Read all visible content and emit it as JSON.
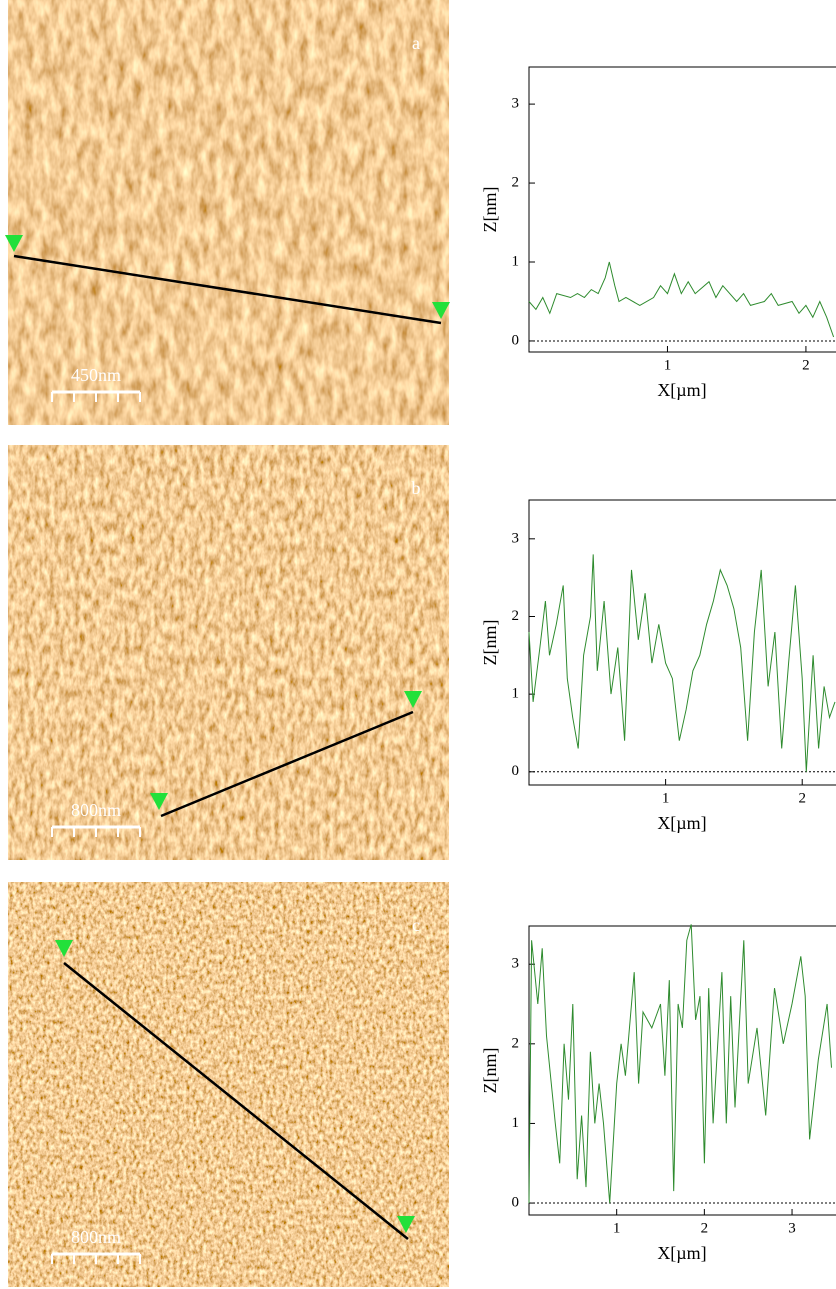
{
  "chart_data": [
    {
      "type": "line",
      "xlabel": "X[µm]",
      "ylabel": "Z[nm]",
      "color": "#2e8b2e",
      "xlim": [
        0,
        2.21
      ],
      "ylim": [
        -0.14,
        3.47
      ],
      "xticks": [
        1,
        2
      ],
      "yticks": [
        0,
        1,
        2,
        3
      ],
      "x": [
        0,
        0.05,
        0.1,
        0.15,
        0.2,
        0.3,
        0.35,
        0.4,
        0.45,
        0.5,
        0.55,
        0.58,
        0.62,
        0.65,
        0.7,
        0.8,
        0.9,
        0.95,
        1.0,
        1.05,
        1.1,
        1.15,
        1.2,
        1.3,
        1.35,
        1.4,
        1.5,
        1.55,
        1.6,
        1.7,
        1.75,
        1.8,
        1.9,
        1.95,
        2.0,
        2.05,
        2.1,
        2.15,
        2.2
      ],
      "values": [
        0.5,
        0.4,
        0.55,
        0.35,
        0.6,
        0.55,
        0.6,
        0.55,
        0.65,
        0.6,
        0.8,
        1.0,
        0.7,
        0.5,
        0.55,
        0.45,
        0.55,
        0.7,
        0.6,
        0.85,
        0.6,
        0.75,
        0.6,
        0.75,
        0.55,
        0.7,
        0.5,
        0.6,
        0.45,
        0.5,
        0.6,
        0.45,
        0.5,
        0.35,
        0.45,
        0.3,
        0.5,
        0.3,
        0.05
      ]
    },
    {
      "type": "line",
      "xlabel": "X[µm]",
      "ylabel": "Z[nm]",
      "color": "#2e8b2e",
      "xlim": [
        0,
        2.24
      ],
      "ylim": [
        -0.17,
        3.5
      ],
      "xticks": [
        1,
        2
      ],
      "yticks": [
        0,
        1,
        2,
        3
      ],
      "x": [
        0,
        0.03,
        0.08,
        0.12,
        0.15,
        0.2,
        0.25,
        0.28,
        0.32,
        0.36,
        0.4,
        0.45,
        0.47,
        0.5,
        0.55,
        0.6,
        0.65,
        0.7,
        0.75,
        0.8,
        0.85,
        0.9,
        0.95,
        1.0,
        1.05,
        1.1,
        1.15,
        1.2,
        1.25,
        1.3,
        1.35,
        1.4,
        1.45,
        1.5,
        1.55,
        1.6,
        1.65,
        1.7,
        1.75,
        1.8,
        1.85,
        1.9,
        1.95,
        2.0,
        2.03,
        2.08,
        2.12,
        2.16,
        2.2,
        2.24
      ],
      "values": [
        1.8,
        0.9,
        1.6,
        2.2,
        1.5,
        1.9,
        2.4,
        1.2,
        0.7,
        0.3,
        1.5,
        2.0,
        2.8,
        1.3,
        2.2,
        1.0,
        1.6,
        0.4,
        2.6,
        1.7,
        2.3,
        1.4,
        1.9,
        1.4,
        1.2,
        0.4,
        0.8,
        1.3,
        1.5,
        1.9,
        2.2,
        2.6,
        2.4,
        2.1,
        1.6,
        0.4,
        1.8,
        2.6,
        1.1,
        1.8,
        0.3,
        1.4,
        2.4,
        1.2,
        0.0,
        1.5,
        0.3,
        1.1,
        0.7,
        0.9
      ]
    },
    {
      "type": "line",
      "xlabel": "X[µm]",
      "ylabel": "Z[nm]",
      "color": "#2e8b2e",
      "xlim": [
        0,
        3.49
      ],
      "ylim": [
        -0.15,
        3.48
      ],
      "xticks": [
        1,
        2,
        3
      ],
      "yticks": [
        0,
        1,
        2,
        3
      ],
      "x": [
        0,
        0.03,
        0.1,
        0.15,
        0.2,
        0.3,
        0.35,
        0.4,
        0.45,
        0.5,
        0.55,
        0.6,
        0.65,
        0.7,
        0.75,
        0.8,
        0.85,
        0.92,
        1.0,
        1.05,
        1.1,
        1.2,
        1.25,
        1.3,
        1.4,
        1.5,
        1.55,
        1.6,
        1.65,
        1.7,
        1.75,
        1.8,
        1.85,
        1.9,
        1.95,
        2.0,
        2.05,
        2.1,
        2.2,
        2.25,
        2.3,
        2.35,
        2.45,
        2.5,
        2.6,
        2.7,
        2.8,
        2.9,
        3.0,
        3.1,
        3.15,
        3.2,
        3.3,
        3.4,
        3.45
      ],
      "values": [
        0,
        3.3,
        2.5,
        3.2,
        2.1,
        1.0,
        0.5,
        2.0,
        1.3,
        2.5,
        0.3,
        1.1,
        0.2,
        1.9,
        1.0,
        1.5,
        1.0,
        0.0,
        1.5,
        2.0,
        1.6,
        2.9,
        1.5,
        2.4,
        2.2,
        2.5,
        1.6,
        2.8,
        0.15,
        2.5,
        2.2,
        3.3,
        3.5,
        2.3,
        2.6,
        0.5,
        2.7,
        1.0,
        2.9,
        1.0,
        2.6,
        1.2,
        3.3,
        1.5,
        2.2,
        1.1,
        2.7,
        2.0,
        2.5,
        3.1,
        2.6,
        0.8,
        1.8,
        2.5,
        1.7
      ]
    }
  ],
  "images": [
    {
      "label": "a",
      "scale_bar": "450nm"
    },
    {
      "label": "b",
      "scale_bar": "800nm"
    },
    {
      "label": "c",
      "scale_bar": "800nm"
    }
  ]
}
